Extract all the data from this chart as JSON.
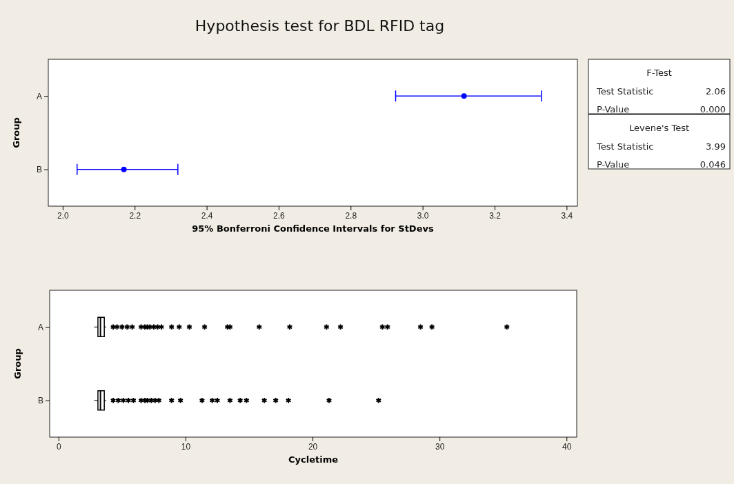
{
  "chart_data": [
    {
      "type": "scatter",
      "title": "Hypothesis test for BDL RFID tag",
      "orientation": "horizontal",
      "categories": [
        "A",
        "B"
      ],
      "ylabel": "Group",
      "xlabel": "95% Bonferroni Confidence Intervals for StDevs",
      "values": [
        3.115,
        2.17
      ],
      "errors": [
        [
          2.925,
          3.33
        ],
        [
          2.04,
          2.32
        ]
      ],
      "color": "#0000ff",
      "marker": "circle",
      "xlim": [
        1.96,
        3.43
      ],
      "xticks": [
        {
          "value": 2.0,
          "label": "2.0"
        },
        {
          "value": 2.2,
          "label": "2.2"
        },
        {
          "value": 2.4,
          "label": "2.4"
        },
        {
          "value": 2.6,
          "label": "2.6"
        },
        {
          "value": 2.8,
          "label": "2.8"
        },
        {
          "value": 3.0,
          "label": "3.0"
        },
        {
          "value": 3.2,
          "label": "3.2"
        },
        {
          "value": 3.4,
          "label": "3.4"
        }
      ]
    },
    {
      "type": "box",
      "orientation": "horizontal",
      "categories": [
        "A",
        "B"
      ],
      "ylabel": "Group",
      "xlabel": "Cycletime",
      "color": "#000000",
      "marker": "star",
      "xlim": [
        -0.7,
        40.8
      ],
      "xticks": [
        0,
        10,
        20,
        30,
        40
      ],
      "boxes": [
        {
          "low": 2.8,
          "q1": 3.1,
          "median": 3.3,
          "q3": 3.6,
          "high": 3.75,
          "outliers": [
            4.3,
            4.6,
            5.0,
            5.4,
            5.8,
            6.5,
            6.8,
            7.0,
            7.2,
            7.5,
            7.8,
            8.1,
            8.9,
            9.5,
            10.3,
            11.5,
            13.3,
            13.5,
            15.8,
            18.2,
            21.1,
            22.2,
            25.5,
            25.9,
            28.5,
            29.4,
            35.3
          ]
        },
        {
          "low": 2.8,
          "q1": 3.1,
          "median": 3.3,
          "q3": 3.6,
          "high": 3.75,
          "outliers": [
            4.3,
            4.7,
            5.1,
            5.5,
            5.9,
            6.5,
            6.8,
            7.0,
            7.3,
            7.6,
            7.9,
            8.9,
            9.6,
            11.3,
            12.1,
            12.5,
            13.5,
            14.3,
            14.8,
            16.2,
            17.1,
            18.1,
            21.3,
            25.2
          ]
        }
      ]
    },
    {
      "type": "other",
      "annotations": [
        "F-Test",
        "Test Statistic",
        "2.06",
        "P-Value",
        "0.000",
        "Levene's Test",
        "Test Statistic",
        "3.99",
        "P-Value",
        "0.046"
      ]
    }
  ]
}
